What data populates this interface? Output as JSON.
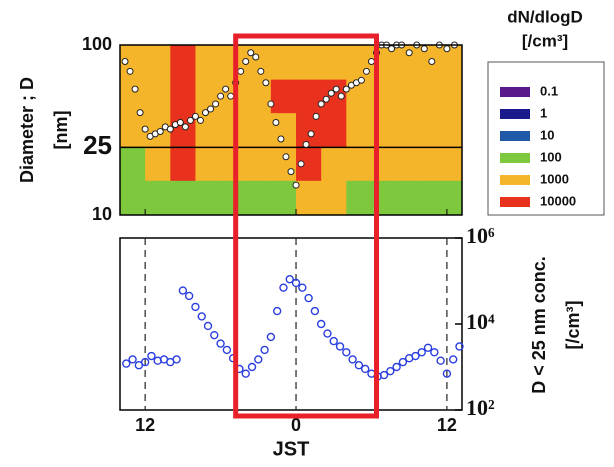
{
  "chart_data": [
    {
      "type": "heatmap",
      "ylabel": [
        "Diameter ; D",
        "[nm]"
      ],
      "xlim": [
        -2,
        25.2
      ],
      "ylim": [
        10,
        100
      ],
      "log_y": true,
      "yticks": [
        10,
        25,
        100
      ],
      "xticks": [
        {
          "value": 0,
          "label": "12"
        },
        {
          "value": 12,
          "label": "0"
        },
        {
          "value": 24,
          "label": "12"
        }
      ],
      "reference_line": 25,
      "reference_color": "#e0202a",
      "heatmap": {
        "x": [
          -2,
          0,
          2,
          4,
          6,
          8,
          10,
          12,
          14,
          16,
          18,
          20,
          22,
          25.2
        ],
        "y": [
          10,
          16,
          25,
          40,
          63,
          100
        ],
        "z": [
          [
            300,
            300,
            500,
            300,
            300,
            500,
            800,
            2000,
            2000,
            800,
            300,
            300,
            300
          ],
          [
            800,
            1500,
            12000,
            2000,
            2000,
            3000,
            5000,
            15000,
            8000,
            3000,
            2000,
            2000,
            1500
          ],
          [
            2000,
            2000,
            12000,
            3000,
            3000,
            5000,
            8000,
            15000,
            12000,
            5000,
            3000,
            3000,
            3000
          ],
          [
            3000,
            3000,
            12000,
            5000,
            5000,
            8000,
            12000,
            15000,
            12000,
            8000,
            5000,
            5000,
            3000
          ],
          [
            2000,
            2000,
            10000,
            3000,
            3000,
            5000,
            8000,
            5000,
            3000,
            3000,
            2000,
            2000,
            2000
          ]
        ]
      },
      "scatter": {
        "x": [
          -1.6,
          -1.2,
          -0.8,
          -0.4,
          0,
          0.4,
          0.8,
          1.2,
          1.6,
          2,
          2.4,
          2.8,
          3.2,
          3.6,
          4,
          4.4,
          4.8,
          5.2,
          5.6,
          6,
          6.4,
          6.8,
          7.2,
          7.6,
          8,
          8.4,
          8.8,
          9.2,
          9.6,
          10,
          10.4,
          10.8,
          11.2,
          11.6,
          12,
          12.4,
          12.8,
          13.2,
          13.6,
          14,
          14.4,
          14.8,
          15.2,
          15.6,
          16,
          16.4,
          16.8,
          17.2,
          17.6,
          18,
          18.4,
          18.8,
          19.2,
          19.6,
          20,
          20.4,
          21,
          21.6,
          22.2,
          22.8,
          23.4,
          24,
          24.6
        ],
        "y": [
          80,
          70,
          55,
          40,
          32,
          29,
          30,
          31,
          33,
          32,
          34,
          35,
          33,
          36,
          38,
          36,
          40,
          42,
          45,
          50,
          55,
          50,
          60,
          70,
          80,
          90,
          85,
          70,
          60,
          45,
          35,
          28,
          22,
          18,
          15,
          20,
          26,
          30,
          38,
          45,
          48,
          52,
          55,
          50,
          55,
          58,
          60,
          62,
          70,
          80,
          90,
          100,
          100,
          95,
          100,
          100,
          90,
          100,
          95,
          80,
          100,
          95,
          100
        ]
      },
      "colorbar": {
        "title": "dN/dlogD",
        "unit": "[/cm³]",
        "levels": [
          0.1,
          1,
          10,
          100,
          1000,
          10000
        ],
        "colors": [
          "#5a1a8c",
          "#1a1a8c",
          "#1e5aa8",
          "#7dc83c",
          "#f5b52a",
          "#e8321e"
        ]
      }
    },
    {
      "type": "scatter",
      "xlabel": "JST",
      "ylabel": [
        "D < 25 nm conc.",
        "[/cm³]"
      ],
      "xlim": [
        -2,
        25.2
      ],
      "ylim": [
        100,
        1000000
      ],
      "log_y": true,
      "xticks": [
        {
          "value": 0,
          "label": "12"
        },
        {
          "value": 12,
          "label": "0"
        },
        {
          "value": 24,
          "label": "12"
        }
      ],
      "yticks": [
        {
          "value": 100,
          "label": "10²"
        },
        {
          "value": 10000,
          "label": "10⁴"
        },
        {
          "value": 1000000,
          "label": "10⁶"
        }
      ],
      "color": "#2a3ee0",
      "x": [
        -1.5,
        -1,
        -0.5,
        0,
        0.5,
        1,
        1.5,
        2,
        2.5,
        3,
        3.5,
        4,
        4.5,
        5,
        5.5,
        6,
        6.5,
        7,
        7.5,
        8,
        8.5,
        9,
        9.5,
        10,
        10.5,
        11,
        11.5,
        12,
        12.5,
        13,
        13.5,
        14,
        14.5,
        15,
        15.5,
        16,
        16.5,
        17,
        17.5,
        18,
        18.5,
        19,
        19.5,
        20,
        20.5,
        21,
        21.5,
        22,
        22.5,
        23,
        23.5,
        24,
        24.5,
        25
      ],
      "values": [
        1200,
        1500,
        1100,
        1300,
        1800,
        1400,
        1500,
        1300,
        1500,
        60000,
        45000,
        25000,
        15000,
        9000,
        5500,
        3500,
        2500,
        1600,
        900,
        700,
        1000,
        1500,
        2500,
        5000,
        20000,
        70000,
        110000,
        90000,
        70000,
        40000,
        20000,
        10000,
        6000,
        4000,
        3000,
        2200,
        1500,
        1100,
        900,
        700,
        600,
        650,
        800,
        1000,
        1300,
        1600,
        1800,
        2200,
        2800,
        2200,
        1400,
        700,
        1500,
        3000
      ]
    }
  ],
  "highlight": {
    "x": [
      7.2,
      18.4
    ],
    "color": "#e8202a"
  }
}
